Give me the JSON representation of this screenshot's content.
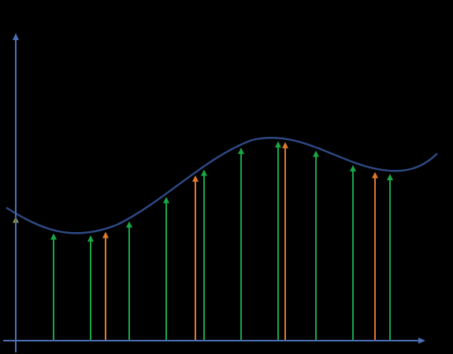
{
  "colors": {
    "background": "#000000",
    "axis": "#4a6fb5",
    "curve": "#2f4a86",
    "sample_green": "#18a848",
    "sample_orange": "#e0782c",
    "sample_olive": "#9a9a3a"
  },
  "diagram": {
    "type": "function-sampling",
    "arrow_types": [
      "olive",
      "green",
      "green",
      "orange",
      "green",
      "green",
      "orange",
      "green",
      "green",
      "green",
      "orange",
      "green",
      "green",
      "orange",
      "green"
    ]
  }
}
